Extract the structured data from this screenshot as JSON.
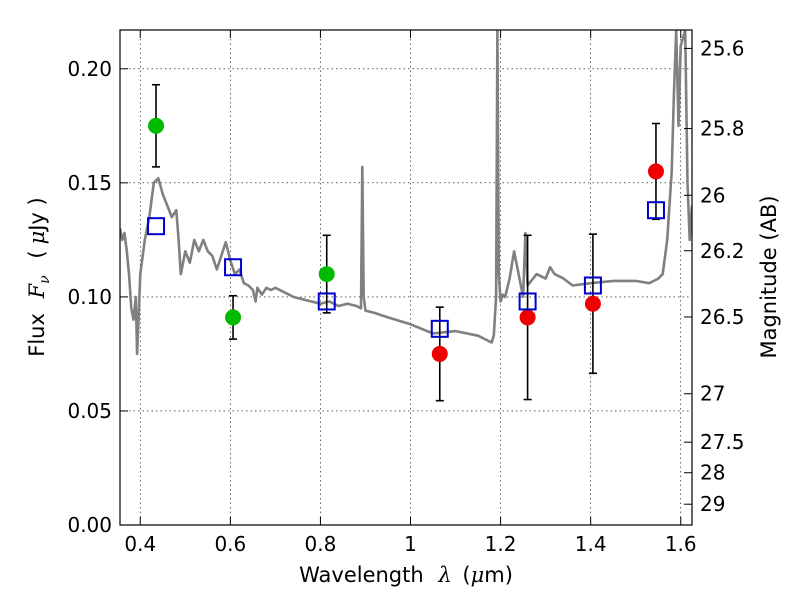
{
  "chart_data": {
    "type": "scatter",
    "xlabel": "Wavelength",
    "xlabel_math": "λ",
    "xlabel_unit_pre": "(",
    "xlabel_unit_mu": "μ",
    "xlabel_unit_post": "m)",
    "ylabel": "Flux",
    "ylabel_math": "F",
    "ylabel_math_sub": "ν",
    "ylabel_unit_pre": "(",
    "ylabel_unit_mu": "μ",
    "ylabel_unit_post": "Jy )",
    "y2label": "Magnitude (AB)",
    "xlim": [
      0.355,
      1.625
    ],
    "ylim": [
      0.0,
      0.217
    ],
    "grid": true,
    "x_ticks": [
      {
        "value": 0.4,
        "label": "0.4"
      },
      {
        "value": 0.6,
        "label": "0.6"
      },
      {
        "value": 0.8,
        "label": "0.8"
      },
      {
        "value": 1.0,
        "label": "1"
      },
      {
        "value": 1.2,
        "label": "1.2"
      },
      {
        "value": 1.4,
        "label": "1.4"
      },
      {
        "value": 1.6,
        "label": "1.6"
      }
    ],
    "y_ticks": [
      {
        "value": 0.0,
        "label": "0.00"
      },
      {
        "value": 0.05,
        "label": "0.05"
      },
      {
        "value": 0.1,
        "label": "0.10"
      },
      {
        "value": 0.15,
        "label": "0.15"
      },
      {
        "value": 0.2,
        "label": "0.20"
      }
    ],
    "y2_ticks": [
      {
        "mag": 25.6,
        "label": "25.6"
      },
      {
        "mag": 25.8,
        "label": "25.8"
      },
      {
        "mag": 26.0,
        "label": "26"
      },
      {
        "mag": 26.2,
        "label": "26.2"
      },
      {
        "mag": 26.5,
        "label": "26.5"
      },
      {
        "mag": 27.0,
        "label": "27"
      },
      {
        "mag": 27.5,
        "label": "27.5"
      },
      {
        "mag": 28.0,
        "label": "28"
      },
      {
        "mag": 29.0,
        "label": "29"
      }
    ],
    "series": [
      {
        "marker": "circle",
        "color": "#00bb00",
        "points": [
          {
            "x": 0.435,
            "y": 0.175,
            "err": 0.018
          },
          {
            "x": 0.606,
            "y": 0.091,
            "err": 0.0095
          },
          {
            "x": 0.814,
            "y": 0.11,
            "err": 0.017
          }
        ]
      },
      {
        "marker": "circle",
        "color": "#ee0000",
        "points": [
          {
            "x": 1.065,
            "y": 0.075,
            "err": 0.0205
          },
          {
            "x": 1.26,
            "y": 0.091,
            "err": 0.036
          },
          {
            "x": 1.405,
            "y": 0.097,
            "err": 0.0305
          },
          {
            "x": 1.545,
            "y": 0.155,
            "err": 0.021
          }
        ]
      },
      {
        "marker": "square",
        "color": "#0000cc",
        "points": [
          {
            "x": 0.435,
            "y": 0.131
          },
          {
            "x": 0.606,
            "y": 0.113
          },
          {
            "x": 0.814,
            "y": 0.098
          },
          {
            "x": 1.065,
            "y": 0.086
          },
          {
            "x": 1.26,
            "y": 0.098
          },
          {
            "x": 1.405,
            "y": 0.105
          },
          {
            "x": 1.545,
            "y": 0.138
          }
        ]
      }
    ],
    "model_spectrum": {
      "color": "#808080",
      "x": [
        0.355,
        0.36,
        0.365,
        0.37,
        0.375,
        0.38,
        0.385,
        0.39,
        0.393,
        0.396,
        0.4,
        0.41,
        0.42,
        0.43,
        0.44,
        0.45,
        0.46,
        0.47,
        0.48,
        0.485,
        0.49,
        0.5,
        0.51,
        0.52,
        0.53,
        0.54,
        0.55,
        0.56,
        0.57,
        0.58,
        0.59,
        0.6,
        0.61,
        0.62,
        0.63,
        0.64,
        0.65,
        0.656,
        0.66,
        0.67,
        0.68,
        0.69,
        0.7,
        0.72,
        0.74,
        0.76,
        0.78,
        0.8,
        0.82,
        0.84,
        0.86,
        0.88,
        0.89,
        0.893,
        0.896,
        0.9,
        0.92,
        0.95,
        1.0,
        1.05,
        1.1,
        1.15,
        1.18,
        1.185,
        1.19,
        1.193,
        1.196,
        1.2,
        1.205,
        1.21,
        1.22,
        1.23,
        1.25,
        1.255,
        1.26,
        1.28,
        1.3,
        1.31,
        1.32,
        1.34,
        1.36,
        1.4,
        1.45,
        1.5,
        1.53,
        1.55,
        1.56,
        1.57,
        1.58,
        1.585,
        1.59,
        1.595,
        1.6,
        1.61,
        1.615,
        1.62,
        1.625
      ],
      "y": [
        0.13,
        0.125,
        0.128,
        0.12,
        0.11,
        0.095,
        0.09,
        0.1,
        0.075,
        0.09,
        0.11,
        0.125,
        0.135,
        0.15,
        0.152,
        0.145,
        0.14,
        0.135,
        0.138,
        0.125,
        0.11,
        0.12,
        0.115,
        0.125,
        0.12,
        0.125,
        0.12,
        0.118,
        0.112,
        0.118,
        0.124,
        0.116,
        0.11,
        0.112,
        0.106,
        0.105,
        0.103,
        0.098,
        0.104,
        0.101,
        0.104,
        0.103,
        0.104,
        0.102,
        0.1,
        0.099,
        0.098,
        0.097,
        0.098,
        0.096,
        0.097,
        0.096,
        0.095,
        0.157,
        0.1,
        0.094,
        0.093,
        0.091,
        0.088,
        0.084,
        0.085,
        0.083,
        0.08,
        0.083,
        0.1,
        0.217,
        0.11,
        0.098,
        0.101,
        0.1,
        0.108,
        0.12,
        0.1,
        0.128,
        0.105,
        0.11,
        0.108,
        0.113,
        0.11,
        0.108,
        0.105,
        0.106,
        0.107,
        0.107,
        0.106,
        0.108,
        0.11,
        0.125,
        0.155,
        0.19,
        0.217,
        0.175,
        0.21,
        0.217,
        0.15,
        0.125,
        0.14
      ]
    }
  }
}
